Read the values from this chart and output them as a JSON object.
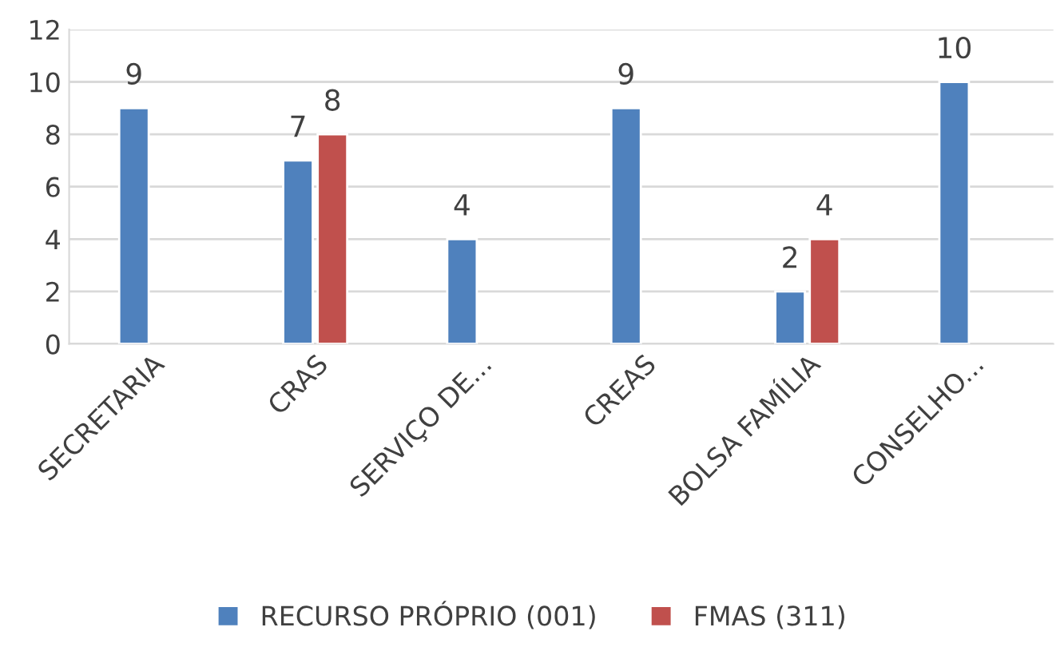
{
  "chart_data": {
    "type": "bar",
    "categories": [
      "SECRETARIA",
      "CRAS",
      "SERVIÇO DE...",
      "CREAS",
      "BOLSA FAMÍLIA",
      "CONSELHO..."
    ],
    "series": [
      {
        "name": "RECURSO PRÓPRIO (001)",
        "color": "#4f81bd",
        "values": [
          9,
          7,
          4,
          9,
          2,
          10
        ]
      },
      {
        "name": "FMAS (311)",
        "color": "#c0504d",
        "values": [
          null,
          8,
          null,
          null,
          4,
          null
        ]
      }
    ],
    "ylim": [
      0,
      12
    ],
    "yticks": [
      0,
      2,
      4,
      6,
      8,
      10,
      12
    ],
    "grid": "y",
    "legend": "bottom",
    "data_labels": true
  }
}
